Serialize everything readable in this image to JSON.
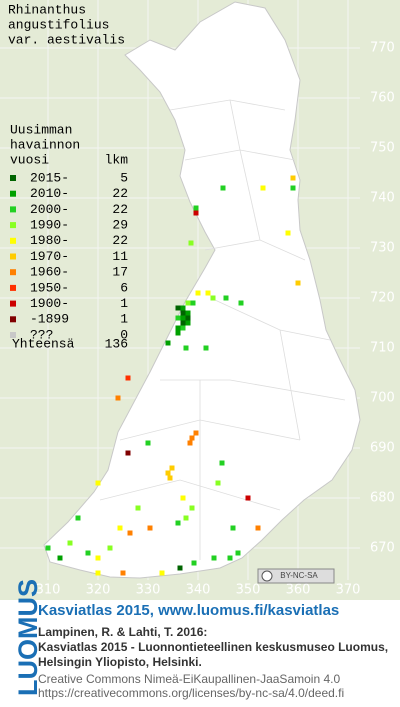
{
  "map": {
    "title": [
      "Rhinanthus",
      "angustifolius",
      "var. aestivalis"
    ],
    "legend_header": [
      "Uusimman",
      "havainnon",
      "vuosi"
    ],
    "legend_count_header": "lkm",
    "legend": [
      {
        "label": "2015-",
        "count": 5,
        "color": "#006400"
      },
      {
        "label": "2010-",
        "count": 22,
        "color": "#00a000"
      },
      {
        "label": "2000-",
        "count": 22,
        "color": "#22d022"
      },
      {
        "label": "1990-",
        "count": 29,
        "color": "#88ff22"
      },
      {
        "label": "1980-",
        "count": 22,
        "color": "#ffff00"
      },
      {
        "label": "1970-",
        "count": 11,
        "color": "#ffcc00"
      },
      {
        "label": "1960-",
        "count": 17,
        "color": "#ff8000"
      },
      {
        "label": "1950-",
        "count": 6,
        "color": "#ff3000"
      },
      {
        "label": "1900-",
        "count": 1,
        "color": "#cc0000"
      },
      {
        "label": "-1899",
        "count": 1,
        "color": "#800000"
      },
      {
        "label": "???",
        "count": 0,
        "color": "#c8c8c8"
      }
    ],
    "total_label": "Yhteensä",
    "total": 136,
    "xticks": [
      310,
      320,
      330,
      340,
      350,
      360,
      370
    ],
    "yticks": [
      670,
      680,
      690,
      700,
      710,
      720,
      730,
      740,
      750,
      760,
      770
    ],
    "xlim": [
      300.4,
      380.4
    ],
    "ylim": [
      660,
      779.6
    ],
    "license_badge": "BY-NC-SA",
    "points": [
      [
        336,
        718,
        0
      ],
      [
        337,
        718,
        1
      ],
      [
        337,
        717,
        0
      ],
      [
        338,
        717,
        1
      ],
      [
        338,
        716,
        0
      ],
      [
        337,
        716,
        1
      ],
      [
        336,
        716,
        2
      ],
      [
        338,
        715,
        1
      ],
      [
        337,
        715,
        0
      ],
      [
        339,
        719,
        2
      ],
      [
        336,
        714,
        1
      ],
      [
        337,
        714,
        2
      ],
      [
        336,
        713,
        1
      ],
      [
        338,
        719,
        3
      ],
      [
        353,
        742,
        4
      ],
      [
        359,
        744,
        5
      ],
      [
        359,
        742,
        2
      ],
      [
        345,
        742,
        2
      ],
      [
        339.6,
        738,
        2
      ],
      [
        339.6,
        737,
        8
      ],
      [
        358,
        733,
        4
      ],
      [
        338.6,
        731,
        3
      ],
      [
        340,
        721,
        4
      ],
      [
        342,
        721,
        4
      ],
      [
        343,
        720,
        3
      ],
      [
        345.6,
        720,
        2
      ],
      [
        348.6,
        719,
        2
      ],
      [
        360,
        723,
        5
      ],
      [
        334,
        711,
        1
      ],
      [
        337.6,
        710,
        2
      ],
      [
        341.6,
        710,
        2
      ],
      [
        326,
        704,
        7
      ],
      [
        324,
        700,
        6
      ],
      [
        338.8,
        692,
        6
      ],
      [
        339.6,
        693,
        6
      ],
      [
        338.4,
        691,
        6
      ],
      [
        330,
        691,
        2
      ],
      [
        334,
        685,
        5
      ],
      [
        334.4,
        684,
        5
      ],
      [
        334.8,
        686,
        5
      ],
      [
        326,
        689,
        9
      ],
      [
        344.8,
        687,
        2
      ],
      [
        337,
        680,
        4
      ],
      [
        337.6,
        676,
        3
      ],
      [
        336,
        675,
        2
      ],
      [
        338.8,
        678,
        3
      ],
      [
        350,
        680,
        8
      ],
      [
        347,
        674,
        2
      ],
      [
        348,
        669,
        2
      ],
      [
        352,
        674,
        6
      ],
      [
        310,
        670,
        2
      ],
      [
        312.4,
        668,
        1
      ],
      [
        314.4,
        671,
        3
      ],
      [
        318,
        669,
        2
      ],
      [
        320,
        668,
        4
      ],
      [
        322.4,
        670,
        3
      ],
      [
        325,
        665,
        6
      ],
      [
        320,
        665,
        4
      ],
      [
        332.8,
        665,
        4
      ],
      [
        336.4,
        666,
        0
      ],
      [
        339.2,
        667,
        2
      ],
      [
        343.2,
        668,
        2
      ],
      [
        346.4,
        668,
        2
      ],
      [
        324.4,
        674,
        4
      ],
      [
        326.4,
        673,
        6
      ],
      [
        330.4,
        674,
        6
      ],
      [
        328,
        678,
        3
      ],
      [
        316,
        676,
        2
      ],
      [
        344,
        683,
        3
      ],
      [
        320,
        683,
        4
      ]
    ],
    "footer": {
      "brand": "LUOMUS",
      "link": "Kasviatlas 2015, www.luomus.fi/kasviatlas",
      "citation": [
        "Lampinen, R. & Lahti, T. 2016:",
        "Kasviatlas 2015 - Luonnontieteellinen keskusmuseo Luomus,",
        "Helsingin Yliopisto, Helsinki."
      ],
      "license": [
        "Creative Commons Nimeä-EiKaupallinen-JaaSamoin 4.0",
        "https://creativecommons.org/licenses/by-nc-sa/4.0/deed.fi"
      ]
    }
  }
}
